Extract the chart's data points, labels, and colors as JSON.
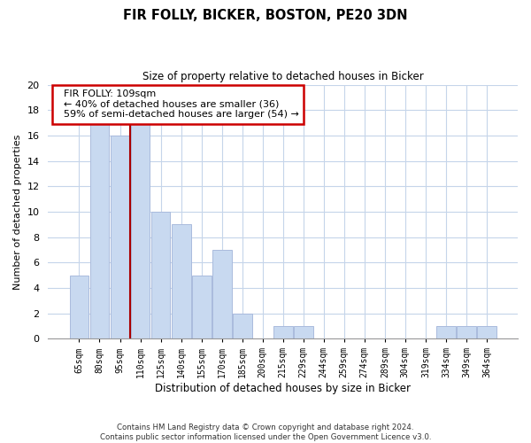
{
  "title": "FIR FOLLY, BICKER, BOSTON, PE20 3DN",
  "subtitle": "Size of property relative to detached houses in Bicker",
  "xlabel": "Distribution of detached houses by size in Bicker",
  "ylabel": "Number of detached properties",
  "categories": [
    "65sqm",
    "80sqm",
    "95sqm",
    "110sqm",
    "125sqm",
    "140sqm",
    "155sqm",
    "170sqm",
    "185sqm",
    "200sqm",
    "215sqm",
    "229sqm",
    "244sqm",
    "259sqm",
    "274sqm",
    "289sqm",
    "304sqm",
    "319sqm",
    "334sqm",
    "349sqm",
    "364sqm"
  ],
  "values": [
    5,
    17,
    16,
    17,
    10,
    9,
    5,
    7,
    2,
    0,
    1,
    1,
    0,
    0,
    0,
    0,
    0,
    0,
    1,
    1,
    1
  ],
  "bar_color": "#c8d9f0",
  "bar_edge_color": "#aabbdd",
  "marker_label": "FIR FOLLY: 109sqm",
  "annotation_line1": "← 40% of detached houses are smaller (36)",
  "annotation_line2": "59% of semi-detached houses are larger (54) →",
  "annotation_box_color": "#ffffff",
  "annotation_box_edge": "#cc0000",
  "marker_line_color": "#aa0000",
  "ylim": [
    0,
    20
  ],
  "yticks": [
    0,
    2,
    4,
    6,
    8,
    10,
    12,
    14,
    16,
    18,
    20
  ],
  "footer_line1": "Contains HM Land Registry data © Crown copyright and database right 2024.",
  "footer_line2": "Contains public sector information licensed under the Open Government Licence v3.0.",
  "background_color": "#ffffff",
  "grid_color": "#c5d5ea"
}
